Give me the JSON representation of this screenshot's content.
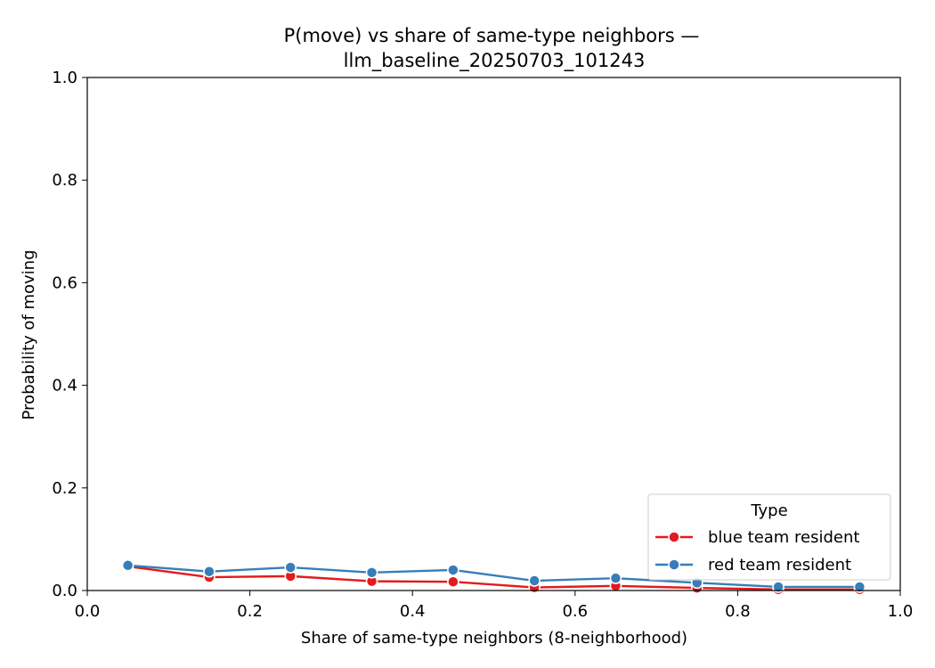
{
  "chart_data": {
    "type": "line",
    "title": "P(move) vs share of same-type neighbors —",
    "subtitle": "llm_baseline_20250703_101243",
    "xlabel": "Share of same-type neighbors (8-neighborhood)",
    "ylabel": "Probability of moving",
    "xlim": [
      0.0,
      1.0
    ],
    "ylim": [
      0.0,
      1.0
    ],
    "x_ticks": [
      "0.0",
      "0.2",
      "0.4",
      "0.6",
      "0.8",
      "1.0"
    ],
    "y_ticks": [
      "0.0",
      "0.2",
      "0.4",
      "0.6",
      "0.8",
      "1.0"
    ],
    "grid": false,
    "legend": {
      "title": "Type",
      "placement": "lower-right"
    },
    "x": [
      0.05,
      0.15,
      0.25,
      0.35,
      0.45,
      0.55,
      0.65,
      0.75,
      0.85,
      0.95
    ],
    "series": [
      {
        "name": "blue team resident",
        "color": "#e41a1c",
        "values": [
          0.047,
          0.026,
          0.028,
          0.018,
          0.017,
          0.006,
          0.009,
          0.005,
          0.002,
          0.002
        ]
      },
      {
        "name": "red team resident",
        "color": "#377eb8",
        "values": [
          0.049,
          0.037,
          0.045,
          0.035,
          0.04,
          0.019,
          0.024,
          0.015,
          0.007,
          0.007
        ]
      }
    ]
  }
}
